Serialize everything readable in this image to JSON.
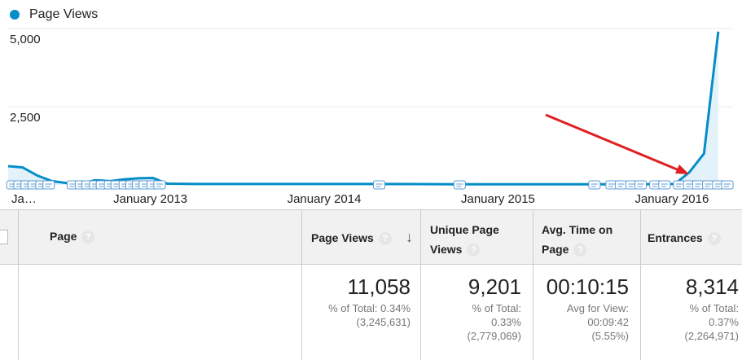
{
  "legend": {
    "label": "Page Views",
    "color": "#058dc7"
  },
  "chart_data": {
    "type": "area",
    "series": [
      {
        "name": "Page Views",
        "points": [
          [
            "2012-06-01",
            600
          ],
          [
            "2012-07-01",
            560
          ],
          [
            "2012-08-01",
            300
          ],
          [
            "2012-09-01",
            120
          ],
          [
            "2012-10-01",
            60
          ],
          [
            "2012-11-01",
            40
          ],
          [
            "2012-12-01",
            150
          ],
          [
            "2013-01-01",
            120
          ],
          [
            "2013-02-01",
            180
          ],
          [
            "2013-03-01",
            210
          ],
          [
            "2013-04-01",
            220
          ],
          [
            "2013-05-01",
            40
          ],
          [
            "2013-07-01",
            30
          ],
          [
            "2014-01-01",
            30
          ],
          [
            "2014-07-01",
            30
          ],
          [
            "2015-01-01",
            20
          ],
          [
            "2015-07-01",
            20
          ],
          [
            "2016-01-01",
            20
          ],
          [
            "2016-04-01",
            30
          ],
          [
            "2016-05-01",
            400
          ],
          [
            "2016-06-01",
            1000
          ],
          [
            "2016-07-01",
            4900
          ]
        ]
      }
    ],
    "yticks": [
      {
        "value": 2500,
        "label": "2,500"
      },
      {
        "value": 5000,
        "label": "5,000"
      }
    ],
    "ylim": [
      0,
      5000
    ],
    "xlim": [
      "2012-06-01",
      "2016-08-01"
    ],
    "xticks": [
      {
        "label": "Ja…",
        "date": "2012-06-01"
      },
      {
        "label": "January 2013",
        "date": "2013-01-01"
      },
      {
        "label": "January 2014",
        "date": "2014-01-01"
      },
      {
        "label": "January 2015",
        "date": "2015-01-01"
      },
      {
        "label": "January 2016",
        "date": "2016-01-01"
      }
    ],
    "annotation_marker_dates": [
      "2012-06-10",
      "2012-06-25",
      "2012-07-10",
      "2012-07-25",
      "2012-08-10",
      "2012-08-25",
      "2012-10-15",
      "2012-11-01",
      "2012-11-15",
      "2012-12-01",
      "2012-12-15",
      "2013-01-01",
      "2013-01-15",
      "2013-02-01",
      "2013-02-15",
      "2013-03-01",
      "2013-03-15",
      "2013-04-01",
      "2013-04-15",
      "2014-07-20",
      "2015-01-05",
      "2015-10-15",
      "2015-11-20",
      "2015-12-10",
      "2016-01-01",
      "2016-01-20",
      "2016-02-20",
      "2016-03-10",
      "2016-04-10",
      "2016-05-01",
      "2016-05-20",
      "2016-06-10",
      "2016-07-01",
      "2016-07-20"
    ],
    "arrow_color": "#e02020",
    "colors": {
      "line": "#058dc7",
      "fill": "#e3f2fa",
      "grid": "#eeeeee"
    }
  },
  "table": {
    "headers": {
      "page": "Page",
      "page_views": "Page Views",
      "unique_page_views_1": "Unique Page",
      "unique_page_views_2": "Views",
      "avg_time_1": "Avg. Time on",
      "avg_time_2": "Page",
      "entrances": "Entrances",
      "help_glyph": "?",
      "sort_glyph": "↓"
    },
    "totals": {
      "page_views": {
        "value": "11,058",
        "line1": "% of Total: 0.34%",
        "line2": "(3,245,631)"
      },
      "unique_page_views": {
        "value": "9,201",
        "line1": "% of Total:",
        "line2": "0.33%",
        "line3": "(2,779,069)"
      },
      "avg_time": {
        "value": "00:10:15",
        "line1": "Avg for View:",
        "line2": "00:09:42",
        "line3": "(5.55%)"
      },
      "entrances": {
        "value": "8,314",
        "line1": "% of Total:",
        "line2": "0.37%",
        "line3": "(2,264,971)"
      }
    }
  }
}
